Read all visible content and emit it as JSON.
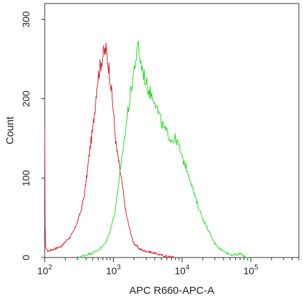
{
  "chart_data": {
    "type": "line",
    "title": "",
    "xlabel": "APC R660-APC-A",
    "ylabel": "Count",
    "x_scale": "log10",
    "xlim": [
      100,
      500000
    ],
    "ylim": [
      0,
      320
    ],
    "grid": false,
    "legend": "none",
    "x_ticks": [
      {
        "value": 100,
        "base": "10",
        "exp": "2"
      },
      {
        "value": 1000,
        "base": "10",
        "exp": "3"
      },
      {
        "value": 10000,
        "base": "10",
        "exp": "4"
      },
      {
        "value": 100000,
        "base": "10",
        "exp": "5"
      }
    ],
    "y_ticks": [
      {
        "value": 0,
        "label": "0"
      },
      {
        "value": 100,
        "label": "100"
      },
      {
        "value": 200,
        "label": "200"
      },
      {
        "value": 300,
        "label": "300"
      }
    ],
    "series": [
      {
        "color": "#e0202a",
        "x": [
          100,
          102,
          110,
          130,
          150,
          180,
          200,
          230,
          260,
          300,
          340,
          380,
          420,
          460,
          500,
          540,
          580,
          620,
          660,
          700,
          740,
          780,
          820,
          860,
          900,
          950,
          1000,
          1050,
          1100,
          1200,
          1300,
          1400,
          1500,
          1600,
          1700,
          1800,
          1900,
          2000,
          2200,
          2400,
          2700,
          3000,
          3400,
          3800,
          4200,
          4600,
          5000,
          5600,
          6300,
          7000,
          8000
        ],
        "y": [
          160,
          15,
          8,
          10,
          12,
          15,
          20,
          25,
          32,
          45,
          60,
          80,
          110,
          140,
          160,
          190,
          220,
          235,
          245,
          255,
          258,
          262,
          250,
          240,
          225,
          205,
          185,
          160,
          140,
          120,
          100,
          80,
          60,
          48,
          38,
          30,
          22,
          18,
          14,
          11,
          9,
          8,
          7,
          6,
          5,
          4,
          3,
          2,
          1,
          1,
          0
        ]
      },
      {
        "color": "#22dd22",
        "x": [
          300,
          360,
          420,
          500,
          560,
          620,
          700,
          760,
          820,
          880,
          940,
          1000,
          1060,
          1120,
          1200,
          1300,
          1400,
          1500,
          1600,
          1700,
          1800,
          1900,
          2000,
          2100,
          2200,
          2300,
          2400,
          2500,
          2600,
          2800,
          3000,
          3300,
          3600,
          4000,
          4400,
          5000,
          5600,
          6300,
          7000,
          8000,
          9000,
          10000,
          11000,
          12000,
          13000,
          14000,
          15000,
          17000,
          19000,
          21000,
          24000,
          27000,
          30000,
          35000,
          40000,
          45000,
          50000,
          60000,
          70000,
          80000,
          90000
        ],
        "y": [
          0,
          2,
          4,
          6,
          8,
          10,
          14,
          18,
          24,
          32,
          40,
          50,
          60,
          75,
          95,
          115,
          140,
          160,
          180,
          195,
          210,
          225,
          235,
          250,
          255,
          268,
          255,
          245,
          240,
          230,
          220,
          210,
          205,
          200,
          185,
          170,
          160,
          155,
          148,
          150,
          140,
          125,
          118,
          110,
          100,
          90,
          80,
          65,
          55,
          45,
          35,
          25,
          18,
          12,
          8,
          6,
          4,
          3,
          5,
          2,
          0
        ]
      }
    ]
  }
}
